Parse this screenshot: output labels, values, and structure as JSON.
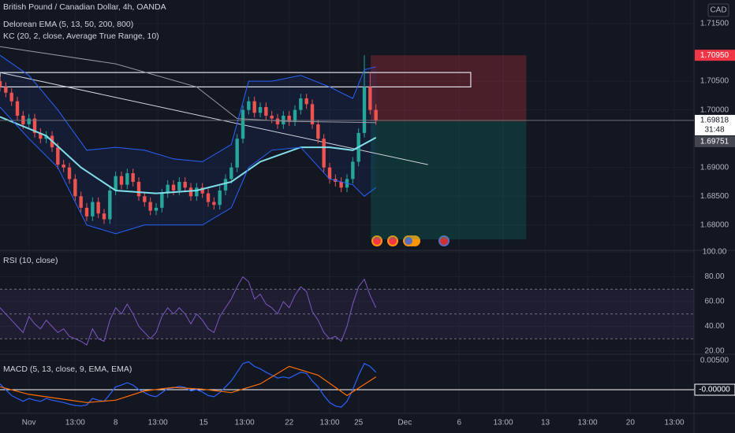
{
  "chart_data": {
    "type": "candlestick",
    "title": "British Pound / Canadian Dollar, 4h, OANDA",
    "legend": [
      "Delorean EMA (5, 13, 50, 200, 800)",
      "KC (20, 2, close, Average True Range, 10)"
    ],
    "currency": "CAD",
    "up_color": "#26a69a",
    "down_color": "#ef5350",
    "xlim": [
      -5,
      115
    ],
    "xticks": [
      {
        "value": 0,
        "label": "Nov"
      },
      {
        "value": 8,
        "label": "13:00"
      },
      {
        "value": 15,
        "label": "8"
      },
      {
        "value": 22.3,
        "label": "13:00"
      },
      {
        "value": 30.2,
        "label": "15"
      },
      {
        "value": 37.3,
        "label": "13:00"
      },
      {
        "value": 45,
        "label": "22"
      },
      {
        "value": 52,
        "label": "13:00"
      },
      {
        "value": 57,
        "label": "25"
      },
      {
        "value": 65,
        "label": "Dec"
      },
      {
        "value": 74.4,
        "label": "6"
      },
      {
        "value": 82,
        "label": "13:00"
      },
      {
        "value": 89.3,
        "label": "13"
      },
      {
        "value": 96.6,
        "label": "13:00"
      },
      {
        "value": 104,
        "label": "20"
      },
      {
        "value": 111.6,
        "label": "13:00"
      }
    ],
    "ylim": [
      1.6756,
      1.7191
    ],
    "yticks": [
      {
        "value": 1.715,
        "label": "1.71500"
      },
      {
        "value": 1.705,
        "label": "1.70500"
      },
      {
        "value": 1.7,
        "label": "1.70000"
      },
      {
        "value": 1.69,
        "label": "1.69000"
      },
      {
        "value": 1.685,
        "label": "1.68500"
      },
      {
        "value": 1.68,
        "label": "1.68000"
      }
    ],
    "x": [
      -5,
      -4,
      -3,
      -2,
      -1,
      0,
      1,
      2,
      3,
      4,
      5,
      6,
      7,
      8,
      9,
      10,
      11,
      12,
      13,
      14,
      15,
      16,
      17,
      18,
      19,
      20,
      21,
      22,
      23,
      24,
      25,
      26,
      27,
      28,
      29,
      30,
      31,
      32,
      33,
      34,
      35,
      36,
      37,
      38,
      39,
      40,
      41,
      42,
      43,
      44,
      45,
      46,
      47,
      48,
      49,
      50,
      51,
      52,
      53,
      54,
      55,
      56,
      57,
      58,
      59,
      60
    ],
    "open": [
      1.705,
      1.704,
      1.703,
      1.7015,
      1.699,
      1.6975,
      1.6985,
      1.696,
      1.695,
      1.6955,
      1.6935,
      1.6905,
      1.69,
      1.688,
      1.685,
      1.683,
      1.6815,
      1.684,
      1.682,
      1.681,
      1.686,
      1.6885,
      1.687,
      1.689,
      1.6875,
      1.685,
      1.684,
      1.6825,
      1.683,
      1.6855,
      1.687,
      1.686,
      1.6875,
      1.6865,
      1.685,
      1.6865,
      1.6855,
      1.684,
      1.6835,
      1.686,
      1.688,
      1.69,
      1.695,
      1.7,
      1.7015,
      1.6995,
      1.7005,
      1.699,
      1.6985,
      1.6975,
      1.699,
      1.698,
      1.7,
      1.702,
      1.701,
      1.6975,
      1.695,
      1.69,
      1.688,
      1.6875,
      1.6865,
      1.688,
      1.691,
      1.696,
      1.704,
      1.7
    ],
    "high": [
      1.7058,
      1.7048,
      1.7038,
      1.7023,
      1.6998,
      1.6993,
      1.6993,
      1.6968,
      1.6963,
      1.6963,
      1.6943,
      1.6913,
      1.6908,
      1.6888,
      1.6858,
      1.6838,
      1.6848,
      1.6848,
      1.6828,
      1.6868,
      1.6893,
      1.6893,
      1.6898,
      1.6898,
      1.6883,
      1.6858,
      1.6848,
      1.6838,
      1.6863,
      1.6878,
      1.6878,
      1.6883,
      1.6883,
      1.6873,
      1.6873,
      1.6873,
      1.6863,
      1.6848,
      1.6868,
      1.6888,
      1.6908,
      1.6958,
      1.7008,
      1.7023,
      1.7023,
      1.7013,
      1.7013,
      1.6998,
      1.6993,
      1.6998,
      1.6998,
      1.7008,
      1.7028,
      1.7028,
      1.7018,
      1.6983,
      1.6958,
      1.6908,
      1.6888,
      1.6883,
      1.6888,
      1.6918,
      1.6968,
      1.7095,
      1.7065,
      1.701
    ],
    "low": [
      1.7032,
      1.7022,
      1.7007,
      1.6982,
      1.6967,
      1.6967,
      1.6952,
      1.6942,
      1.6942,
      1.6927,
      1.6897,
      1.6892,
      1.6872,
      1.6842,
      1.6822,
      1.6807,
      1.6807,
      1.6812,
      1.6802,
      1.6802,
      1.6852,
      1.6862,
      1.6862,
      1.6867,
      1.6842,
      1.6832,
      1.6817,
      1.6817,
      1.6822,
      1.6847,
      1.6852,
      1.6852,
      1.6857,
      1.6842,
      1.6842,
      1.6847,
      1.6832,
      1.6827,
      1.6827,
      1.6852,
      1.6872,
      1.6892,
      1.6942,
      1.6992,
      1.6987,
      1.6987,
      1.6982,
      1.6977,
      1.6967,
      1.6967,
      1.6972,
      1.6972,
      1.6992,
      1.7002,
      1.6967,
      1.6942,
      1.6892,
      1.6872,
      1.6867,
      1.6857,
      1.6857,
      1.6872,
      1.6902,
      1.6952,
      1.6992,
      1.6974
    ],
    "close": [
      1.704,
      1.703,
      1.7015,
      1.699,
      1.6975,
      1.6985,
      1.696,
      1.695,
      1.6955,
      1.6935,
      1.6905,
      1.69,
      1.688,
      1.685,
      1.683,
      1.6815,
      1.684,
      1.682,
      1.681,
      1.686,
      1.6885,
      1.687,
      1.689,
      1.6875,
      1.685,
      1.684,
      1.6825,
      1.683,
      1.6855,
      1.687,
      1.686,
      1.6875,
      1.6865,
      1.685,
      1.6865,
      1.6855,
      1.684,
      1.6835,
      1.686,
      1.688,
      1.69,
      1.695,
      1.7,
      1.7015,
      1.6995,
      1.7005,
      1.699,
      1.6985,
      1.6975,
      1.699,
      1.698,
      1.7,
      1.702,
      1.701,
      1.6975,
      1.695,
      1.69,
      1.688,
      1.6875,
      1.6865,
      1.688,
      1.691,
      1.696,
      1.704,
      1.7,
      1.6982
    ],
    "overlays": [
      {
        "color": "#9598a1",
        "x": [
          -5,
          15,
          29,
          36,
          45,
          60
        ],
        "values": [
          1.711,
          1.708,
          1.704,
          1.6985,
          1.698,
          1.6978
        ]
      },
      {
        "color": "#80deea",
        "x": [
          -5,
          3,
          9,
          15,
          22,
          29,
          35,
          40,
          47,
          52,
          56,
          60
        ],
        "values": [
          1.6988,
          1.6955,
          1.69,
          1.686,
          1.6855,
          1.686,
          1.6875,
          1.691,
          1.6935,
          1.6935,
          1.693,
          1.6952
        ]
      },
      {
        "color": "#2962ff",
        "x": [
          -5,
          0,
          5,
          10,
          15,
          20,
          25,
          30,
          35,
          38,
          42,
          47,
          52,
          56,
          58,
          60
        ],
        "values": [
          1.7095,
          1.706,
          1.7,
          1.693,
          1.6935,
          1.693,
          1.6915,
          1.691,
          1.694,
          1.705,
          1.705,
          1.706,
          1.704,
          1.702,
          1.707,
          1.7075
        ]
      },
      {
        "color": "#2962ff",
        "x": [
          -5,
          0,
          5,
          10,
          15,
          20,
          25,
          30,
          35,
          38,
          42,
          47,
          52,
          56,
          58,
          60
        ],
        "values": [
          1.7005,
          1.695,
          1.69,
          1.68,
          1.6785,
          1.68,
          1.68,
          1.68,
          1.683,
          1.69,
          1.693,
          1.6935,
          1.688,
          1.687,
          1.685,
          1.6865
        ]
      }
    ],
    "trendline": {
      "x": [
        -5,
        69
      ],
      "values": [
        1.7065,
        1.6905
      ]
    },
    "zone": {
      "x": [
        -5,
        76.4
      ],
      "values": [
        1.7065,
        1.704
      ]
    },
    "position": {
      "x": [
        59.1,
        86
      ],
      "target": 1.7095,
      "entry": 1.698,
      "stop": 1.6775
    },
    "price_labels": [
      {
        "value": 1.7095,
        "label": "1.70950",
        "color": "#f23645"
      },
      {
        "value": 1.69818,
        "label": "1.69818",
        "color": "#ffffff",
        "countdown": "31:48"
      },
      {
        "value": 1.69751,
        "label": "1.69751",
        "color": "#434651"
      }
    ],
    "rsi": {
      "title": "RSI (10, close)",
      "color": "#7e57c2",
      "ylim": [
        17.5,
        101.3
      ],
      "yticks": [
        {
          "value": 20,
          "label": "20.00"
        },
        {
          "value": 40,
          "label": "40.00"
        },
        {
          "value": 60,
          "label": "60.00"
        },
        {
          "value": 80,
          "label": "80.00"
        },
        {
          "value": 100,
          "label": "100.00"
        }
      ],
      "band": [
        30,
        50,
        70
      ],
      "values": [
        55,
        50,
        45,
        40,
        35,
        48,
        42,
        38,
        45,
        40,
        35,
        38,
        32,
        30,
        28,
        25,
        38,
        30,
        28,
        45,
        55,
        50,
        58,
        50,
        40,
        35,
        30,
        35,
        48,
        55,
        50,
        55,
        50,
        42,
        50,
        45,
        38,
        35,
        48,
        55,
        62,
        72,
        80,
        76,
        62,
        66,
        58,
        55,
        50,
        60,
        55,
        65,
        72,
        68,
        52,
        45,
        35,
        30,
        32,
        28,
        40,
        58,
        72,
        78,
        65,
        55
      ]
    },
    "macd": {
      "title": "MACD (5, 13, close, 9, EMA, EMA)",
      "ylim": [
        -0.00405,
        0.00608
      ],
      "yticks": [
        {
          "value": 0.005,
          "label": "0.00500"
        }
      ],
      "last_label": {
        "value": 0,
        "label": "-0.00000"
      },
      "macd_color": "#2962ff",
      "signal_color": "#ff6d00",
      "values": [
        0.001,
        0,
        -0.001,
        -0.0015,
        -0.002,
        -0.0015,
        -0.0018,
        -0.002,
        -0.0015,
        -0.0018,
        -0.002,
        -0.0022,
        -0.0025,
        -0.0027,
        -0.0028,
        -0.0026,
        -0.0015,
        -0.0018,
        -0.002,
        -0.0008,
        0.0005,
        0.0008,
        0.0012,
        0.0008,
        0,
        -0.0005,
        -0.001,
        -0.0012,
        -0.0005,
        0.0002,
        0.0003,
        0.0006,
        0.0004,
        -0.0002,
        0,
        -0.0004,
        -0.001,
        -0.0012,
        -0.0005,
        0.0005,
        0.0015,
        0.003,
        0.0045,
        0.0048,
        0.004,
        0.0036,
        0.003,
        0.0025,
        0.002,
        0.0022,
        0.002,
        0.0025,
        0.003,
        0.0028,
        0.0015,
        0.0005,
        -0.001,
        -0.0022,
        -0.0028,
        -0.003,
        -0.002,
        0,
        0.0025,
        0.0045,
        0.004,
        0.003
      ],
      "signal_x": [
        -5,
        0,
        5,
        10,
        15,
        20,
        25,
        30,
        35,
        40,
        45,
        50,
        55,
        60
      ],
      "signal": [
        0.0005,
        -0.0008,
        -0.0015,
        -0.0022,
        -0.0018,
        -0.0002,
        0.0004,
        0.0001,
        -0.0005,
        0.001,
        0.004,
        0.0025,
        -0.001,
        0.0022
      ]
    }
  }
}
